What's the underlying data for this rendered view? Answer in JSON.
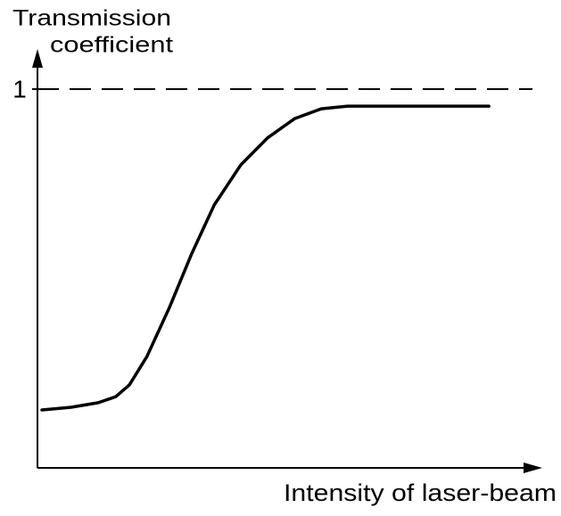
{
  "chart_data": {
    "type": "line",
    "ylabel": [
      "Transmission",
      "coefficient"
    ],
    "xlabel": "Intensity of laser-beam",
    "x": [
      0.9,
      6.7,
      12.1,
      15.6,
      18.3,
      21.8,
      26.3,
      30.7,
      35.2,
      40.5,
      45.8,
      51.2,
      56.5,
      61.8,
      72.5,
      89.9
    ],
    "series": [
      {
        "color": "#000000",
        "values": [
          0.153,
          0.16,
          0.172,
          0.188,
          0.219,
          0.294,
          0.424,
          0.565,
          0.694,
          0.8,
          0.871,
          0.922,
          0.948,
          0.955,
          0.955,
          0.955
        ]
      }
    ],
    "xlim": [
      0,
      100
    ],
    "ylim": [
      0,
      1.09
    ],
    "yticks": [
      1
    ],
    "grid": true,
    "grid_style": "dashed"
  }
}
